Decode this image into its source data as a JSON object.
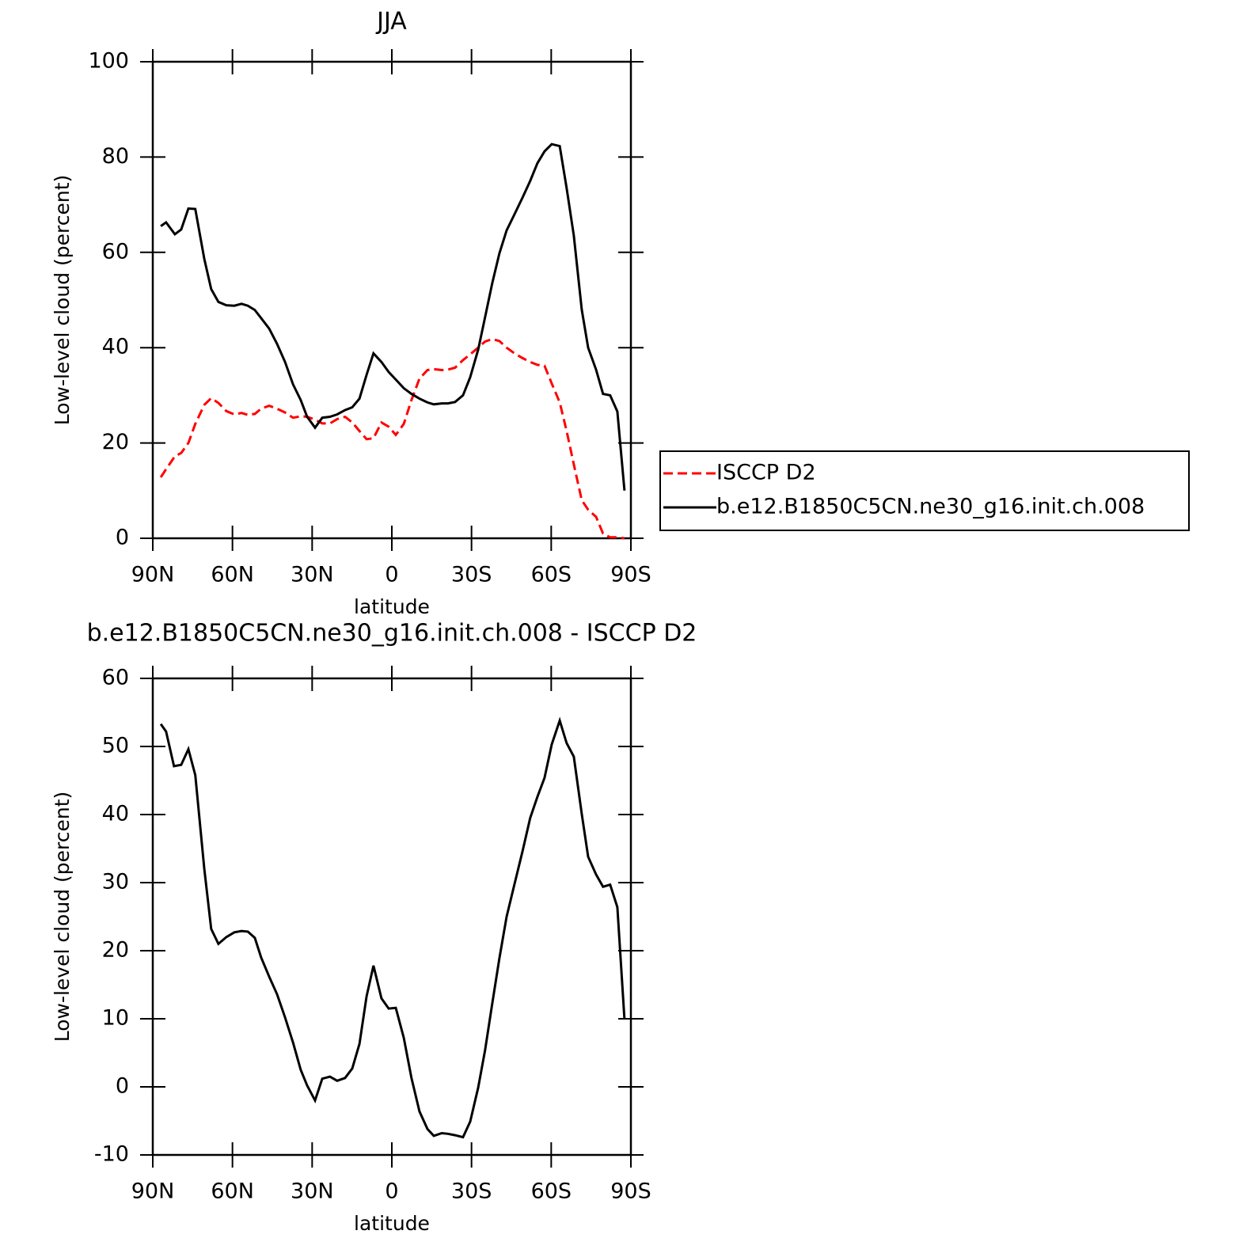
{
  "chart_data": [
    {
      "type": "line",
      "title": "JJA",
      "xlabel": "latitude",
      "ylabel": "Low-level cloud (percent)",
      "x": [
        87,
        85,
        81.7,
        79.3,
        76.6,
        74,
        70.6,
        68,
        65.3,
        62.3,
        59.3,
        56.6,
        54.2,
        51.6,
        49.2,
        46.2,
        43.2,
        40.2,
        37.2,
        34.3,
        31.9,
        28.9,
        26.2,
        23.3,
        20.6,
        17.6,
        14.9,
        12.2,
        9.5,
        6.9,
        3.9,
        1.2,
        -1.5,
        -4.5,
        -7.4,
        -10.4,
        -13.4,
        -15.8,
        -18.8,
        -21.1,
        -23.8,
        -26.8,
        -29.5,
        -32.5,
        -35.1,
        -37.8,
        -40.5,
        -43.2,
        -46.2,
        -49.2,
        -52.1,
        -54.8,
        -57.5,
        -60.2,
        -63.2,
        -65.8,
        -68.5,
        -71.5,
        -73.9,
        -76.9,
        -79.5,
        -82.2,
        -84.9,
        -87.6
      ],
      "series": [
        {
          "name": "ISCCP D2",
          "color": "#ff0000",
          "dashed": true,
          "values": [
            12.8,
            14.5,
            17.2,
            17.9,
            20.0,
            24.0,
            28.0,
            29.4,
            28.4,
            26.7,
            26.0,
            26.3,
            25.9,
            26.1,
            27.2,
            27.8,
            27.2,
            26.4,
            25.3,
            25.6,
            25.5,
            24.9,
            24.1,
            24.1,
            25.0,
            25.5,
            24.3,
            22.5,
            20.8,
            21.0,
            24.3,
            23.4,
            21.7,
            24.0,
            29.0,
            33.5,
            35.3,
            35.5,
            35.3,
            35.4,
            35.8,
            37.4,
            38.6,
            40.0,
            41.3,
            41.8,
            41.4,
            40.0,
            38.8,
            37.8,
            37.0,
            36.4,
            36.2,
            32.5,
            28.5,
            22.5,
            15.5,
            8.0,
            6.0,
            4.5,
            1.0,
            0.2,
            0.2,
            0.0
          ]
        },
        {
          "name": "b.e12.B1850C5CN.ne30_g16.init.ch.008",
          "color": "#000000",
          "dashed": false,
          "values": [
            65.5,
            66.3,
            63.8,
            64.8,
            69.2,
            69.1,
            58.6,
            52.3,
            49.6,
            48.9,
            48.8,
            49.2,
            48.8,
            47.9,
            46.2,
            44.0,
            40.8,
            37.0,
            32.3,
            29.0,
            25.5,
            23.2,
            25.3,
            25.5,
            26.0,
            26.9,
            27.5,
            29.3,
            34.3,
            38.8,
            37.0,
            34.9,
            33.3,
            31.5,
            30.3,
            29.3,
            28.5,
            28.1,
            28.3,
            28.3,
            28.6,
            30.0,
            33.8,
            39.6,
            46.4,
            53.5,
            59.8,
            64.6,
            68.0,
            71.5,
            75.0,
            78.7,
            81.2,
            82.7,
            82.3,
            73.5,
            63.5,
            48.0,
            40.0,
            35.4,
            30.3,
            30.0,
            26.6,
            10.0
          ]
        }
      ],
      "xlim": [
        90,
        -90
      ],
      "ylim": [
        0,
        100
      ],
      "xticks": [
        {
          "value": 90,
          "label": "90N"
        },
        {
          "value": 60,
          "label": "60N"
        },
        {
          "value": 30,
          "label": "30N"
        },
        0,
        {
          "value": -30,
          "label": "30S"
        },
        {
          "value": -60,
          "label": "60S"
        },
        {
          "value": -90,
          "label": "90S"
        }
      ],
      "yticks": [
        0,
        20,
        40,
        60,
        80,
        100
      ],
      "legend": "right"
    },
    {
      "type": "line",
      "title": "b.e12.B1850C5CN.ne30_g16.init.ch.008 - ISCCP D2",
      "xlabel": "latitude",
      "ylabel": "Low-level cloud (percent)",
      "x": [
        87,
        85,
        82,
        79.3,
        76.6,
        74,
        70.6,
        68,
        65.3,
        62.3,
        59.3,
        56.6,
        54.2,
        51.6,
        49.2,
        46.2,
        43.2,
        40.2,
        37.2,
        34.3,
        31.9,
        28.9,
        26.2,
        23.3,
        20.6,
        17.6,
        14.9,
        12.2,
        9.5,
        6.9,
        3.9,
        1.2,
        -1.5,
        -4.5,
        -7.4,
        -10.4,
        -13.4,
        -15.8,
        -18.8,
        -21.1,
        -23.8,
        -26.8,
        -29.5,
        -32.5,
        -35.1,
        -37.8,
        -40.5,
        -43.2,
        -46.2,
        -49.2,
        -52.1,
        -54.8,
        -57.5,
        -60.2,
        -63.2,
        -65.8,
        -68.5,
        -71.5,
        -73.9,
        -76.9,
        -79.5,
        -82.2,
        -84.9,
        -87.6
      ],
      "values": [
        53.3,
        52.2,
        47.1,
        47.3,
        49.6,
        45.8,
        32.0,
        23.2,
        21.0,
        22.0,
        22.7,
        22.9,
        22.8,
        21.9,
        19.0,
        16.2,
        13.6,
        10.2,
        6.5,
        2.5,
        0.2,
        -2.0,
        1.2,
        1.5,
        0.9,
        1.3,
        2.7,
        6.3,
        13.3,
        17.8,
        13.0,
        11.5,
        11.6,
        7.2,
        1.3,
        -3.6,
        -6.2,
        -7.2,
        -6.8,
        -6.9,
        -7.1,
        -7.4,
        -5.1,
        -0.1,
        5.4,
        12.2,
        18.9,
        25.0,
        29.8,
        34.6,
        39.5,
        42.6,
        45.4,
        50.3,
        53.8,
        50.5,
        48.5,
        40.1,
        33.8,
        31.2,
        29.4,
        29.7,
        26.4,
        9.9
      ],
      "color": "#000000",
      "xlim": [
        90,
        -90
      ],
      "ylim": [
        -10,
        60
      ],
      "xticks": [
        {
          "value": 90,
          "label": "90N"
        },
        {
          "value": 60,
          "label": "60N"
        },
        {
          "value": 30,
          "label": "30N"
        },
        0,
        {
          "value": -30,
          "label": "30S"
        },
        {
          "value": -60,
          "label": "60S"
        },
        {
          "value": -90,
          "label": "90S"
        }
      ],
      "yticks": [
        -10,
        0,
        10,
        20,
        30,
        40,
        50,
        60
      ]
    }
  ]
}
